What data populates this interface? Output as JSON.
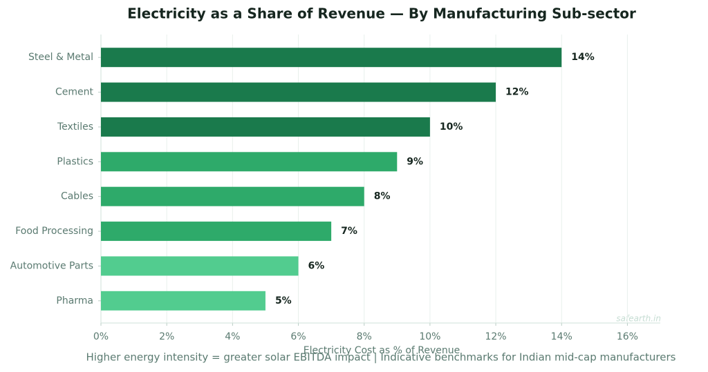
{
  "chart_data": {
    "type": "bar",
    "orientation": "horizontal",
    "title": "Electricity as a Share of Revenue — By Manufacturing Sub-sector",
    "xlabel": "Electricity Cost as % of Revenue",
    "footnote": "Higher energy intensity = greater solar EBITDA impact  |  Indicative benchmarks for Indian mid-cap manufacturers",
    "watermark": "safearth.in",
    "categories": [
      "Steel & Metal",
      "Cement",
      "Textiles",
      "Plastics",
      "Cables",
      "Food Processing",
      "Automotive Parts",
      "Pharma"
    ],
    "values": [
      14,
      12,
      10,
      9,
      8,
      7,
      6,
      5
    ],
    "value_labels": [
      "14%",
      "12%",
      "10%",
      "9%",
      "8%",
      "7%",
      "6%",
      "5%"
    ],
    "colors": [
      "#1a7a4c",
      "#1a7a4c",
      "#1a7a4c",
      "#2eaa6a",
      "#2eaa6a",
      "#2eaa6a",
      "#52cc8f",
      "#52cc8f"
    ],
    "xlim": [
      0,
      17
    ],
    "xticks": [
      {
        "value": 0,
        "label": "0%"
      },
      {
        "value": 2,
        "label": "2%"
      },
      {
        "value": 4,
        "label": "4%"
      },
      {
        "value": 6,
        "label": "6%"
      },
      {
        "value": 8,
        "label": "8%"
      },
      {
        "value": 10,
        "label": "10%"
      },
      {
        "value": 12,
        "label": "12%"
      },
      {
        "value": 14,
        "label": "14%"
      },
      {
        "value": 16,
        "label": "16%"
      }
    ],
    "grid": true
  }
}
